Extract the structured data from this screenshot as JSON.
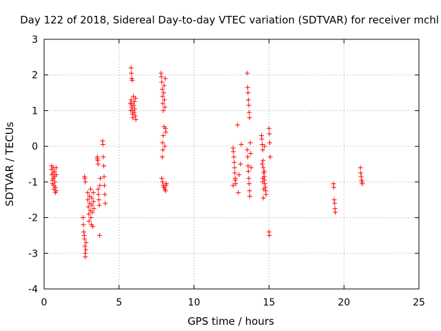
{
  "chart_data": {
    "type": "scatter",
    "title": "Day 122 of 2018, Sidereal Day-to-day VTEC variation (SDTVAR) for receiver mchl",
    "xlabel": "GPS time / hours",
    "ylabel": "SDTVAR / TECUs",
    "xlim": [
      0,
      25
    ],
    "ylim": [
      -4,
      3
    ],
    "xticks": [
      0,
      5,
      10,
      15,
      20,
      25
    ],
    "yticks": [
      -4,
      -3,
      -2,
      -1,
      0,
      1,
      2,
      3
    ],
    "grid": true,
    "marker": "+",
    "marker_color": "#ff0000",
    "series": [
      {
        "name": "SDTVAR",
        "points": [
          [
            0.5,
            -0.55
          ],
          [
            0.5,
            -0.65
          ],
          [
            0.52,
            -0.8
          ],
          [
            0.55,
            -0.95
          ],
          [
            0.55,
            -1.05
          ],
          [
            0.6,
            -0.6
          ],
          [
            0.6,
            -0.75
          ],
          [
            0.62,
            -0.9
          ],
          [
            0.65,
            -1.1
          ],
          [
            0.65,
            -1.2
          ],
          [
            0.7,
            -0.7
          ],
          [
            0.7,
            -0.85
          ],
          [
            0.72,
            -1.0
          ],
          [
            0.75,
            -1.15
          ],
          [
            0.75,
            -1.3
          ],
          [
            0.8,
            -0.6
          ],
          [
            0.8,
            -0.8
          ],
          [
            0.8,
            -1.25
          ],
          [
            2.7,
            -0.85
          ],
          [
            2.72,
            -0.9
          ],
          [
            2.75,
            -1.0
          ],
          [
            2.6,
            -2.0
          ],
          [
            2.62,
            -2.2
          ],
          [
            2.65,
            -2.4
          ],
          [
            2.68,
            -2.5
          ],
          [
            2.7,
            -2.6
          ],
          [
            2.72,
            -2.8
          ],
          [
            2.74,
            -3.0
          ],
          [
            2.75,
            -3.1
          ],
          [
            2.78,
            -2.9
          ],
          [
            2.8,
            -2.7
          ],
          [
            2.9,
            -1.3
          ],
          [
            2.92,
            -1.5
          ],
          [
            2.95,
            -1.7
          ],
          [
            2.98,
            -1.9
          ],
          [
            3.0,
            -2.1
          ],
          [
            3.02,
            -1.4
          ],
          [
            3.05,
            -1.6
          ],
          [
            3.08,
            -1.8
          ],
          [
            3.1,
            -1.2
          ],
          [
            3.12,
            -2.0
          ],
          [
            3.15,
            -2.2
          ],
          [
            3.18,
            -1.45
          ],
          [
            3.2,
            -1.65
          ],
          [
            3.22,
            -1.85
          ],
          [
            3.25,
            -2.25
          ],
          [
            3.28,
            -1.3
          ],
          [
            3.3,
            -1.55
          ],
          [
            3.32,
            -1.75
          ],
          [
            3.55,
            -0.3
          ],
          [
            3.55,
            -0.35
          ],
          [
            3.58,
            -0.4
          ],
          [
            3.6,
            -0.5
          ],
          [
            3.6,
            -1.2
          ],
          [
            3.62,
            -1.35
          ],
          [
            3.65,
            -1.5
          ],
          [
            3.68,
            -1.65
          ],
          [
            3.7,
            -2.5
          ],
          [
            3.72,
            -1.1
          ],
          [
            3.75,
            -0.9
          ],
          [
            3.9,
            0.15
          ],
          [
            3.92,
            0.05
          ],
          [
            3.95,
            -0.3
          ],
          [
            3.98,
            -0.55
          ],
          [
            4.0,
            -0.85
          ],
          [
            4.02,
            -1.1
          ],
          [
            4.05,
            -1.35
          ],
          [
            4.08,
            -1.6
          ],
          [
            5.8,
            2.2
          ],
          [
            5.82,
            2.05
          ],
          [
            5.85,
            1.9
          ],
          [
            5.88,
            1.85
          ],
          [
            5.8,
            1.3
          ],
          [
            5.82,
            1.2
          ],
          [
            5.85,
            1.1
          ],
          [
            5.88,
            1.0
          ],
          [
            5.9,
            0.9
          ],
          [
            5.92,
            0.8
          ],
          [
            5.95,
            1.4
          ],
          [
            5.98,
            1.15
          ],
          [
            6.0,
            0.95
          ],
          [
            6.02,
            1.25
          ],
          [
            6.05,
            1.05
          ],
          [
            6.08,
            0.85
          ],
          [
            6.1,
            1.35
          ],
          [
            6.12,
            0.75
          ],
          [
            5.75,
            1.2
          ],
          [
            5.78,
            1.0
          ],
          [
            7.8,
            2.05
          ],
          [
            7.82,
            1.95
          ],
          [
            7.85,
            1.8
          ],
          [
            7.88,
            1.6
          ],
          [
            7.9,
            1.4
          ],
          [
            7.92,
            1.2
          ],
          [
            7.95,
            1.0
          ],
          [
            7.98,
            1.5
          ],
          [
            8.0,
            1.7
          ],
          [
            8.02,
            1.3
          ],
          [
            8.05,
            1.1
          ],
          [
            8.08,
            1.9
          ],
          [
            8.1,
            0.5
          ],
          [
            8.12,
            0.4
          ],
          [
            8.0,
            0.55
          ],
          [
            7.95,
            0.3
          ],
          [
            7.9,
            0.1
          ],
          [
            7.92,
            -0.1
          ],
          [
            7.88,
            -0.3
          ],
          [
            7.85,
            -0.9
          ],
          [
            7.9,
            -1.0
          ],
          [
            7.95,
            -1.1
          ],
          [
            8.0,
            -1.15
          ],
          [
            8.05,
            -1.2
          ],
          [
            8.1,
            -1.25
          ],
          [
            8.12,
            -1.1
          ],
          [
            8.15,
            -1.05
          ],
          [
            8.05,
            0.0
          ],
          [
            12.6,
            -0.05
          ],
          [
            12.62,
            -0.15
          ],
          [
            12.65,
            -0.3
          ],
          [
            12.68,
            -0.45
          ],
          [
            12.7,
            -0.6
          ],
          [
            12.72,
            -0.75
          ],
          [
            12.74,
            -0.9
          ],
          [
            12.76,
            -0.95
          ],
          [
            12.78,
            -1.05
          ],
          [
            12.6,
            -1.1
          ],
          [
            12.9,
            0.6
          ],
          [
            12.95,
            -1.3
          ],
          [
            13.0,
            -0.8
          ],
          [
            13.1,
            -0.5
          ],
          [
            13.15,
            0.05
          ],
          [
            13.55,
            2.05
          ],
          [
            13.58,
            1.65
          ],
          [
            13.6,
            1.5
          ],
          [
            13.62,
            1.3
          ],
          [
            13.65,
            1.15
          ],
          [
            13.68,
            0.95
          ],
          [
            13.7,
            0.8
          ],
          [
            13.55,
            -0.1
          ],
          [
            13.58,
            -0.3
          ],
          [
            13.6,
            -0.55
          ],
          [
            13.62,
            -0.7
          ],
          [
            13.65,
            -0.9
          ],
          [
            13.68,
            -1.05
          ],
          [
            13.7,
            -1.25
          ],
          [
            13.72,
            -1.4
          ],
          [
            13.75,
            0.1
          ],
          [
            13.78,
            -0.2
          ],
          [
            13.8,
            -0.6
          ],
          [
            14.5,
            0.3
          ],
          [
            14.52,
            0.2
          ],
          [
            14.55,
            0.05
          ],
          [
            14.58,
            -0.1
          ],
          [
            14.6,
            -0.4
          ],
          [
            14.62,
            -0.6
          ],
          [
            14.65,
            -0.75
          ],
          [
            14.68,
            -0.85
          ],
          [
            14.7,
            -0.95
          ],
          [
            14.72,
            -1.05
          ],
          [
            14.75,
            -1.15
          ],
          [
            14.78,
            -1.25
          ],
          [
            14.8,
            -1.35
          ],
          [
            14.6,
            -0.9
          ],
          [
            14.62,
            -1.45
          ],
          [
            14.65,
            -1.2
          ],
          [
            14.68,
            -0.7
          ],
          [
            14.7,
            0.0
          ],
          [
            14.55,
            -0.5
          ],
          [
            14.58,
            -1.0
          ],
          [
            15.0,
            0.5
          ],
          [
            15.02,
            0.35
          ],
          [
            15.05,
            0.1
          ],
          [
            15.08,
            -0.3
          ],
          [
            15.0,
            -2.4
          ],
          [
            15.02,
            -2.5
          ],
          [
            19.3,
            -1.05
          ],
          [
            19.32,
            -1.15
          ],
          [
            19.35,
            -1.5
          ],
          [
            19.38,
            -1.6
          ],
          [
            19.4,
            -1.75
          ],
          [
            19.42,
            -1.85
          ],
          [
            21.1,
            -0.6
          ],
          [
            21.12,
            -0.75
          ],
          [
            21.15,
            -0.85
          ],
          [
            21.18,
            -0.95
          ],
          [
            21.2,
            -1.0
          ],
          [
            21.22,
            -1.05
          ]
        ]
      }
    ]
  }
}
